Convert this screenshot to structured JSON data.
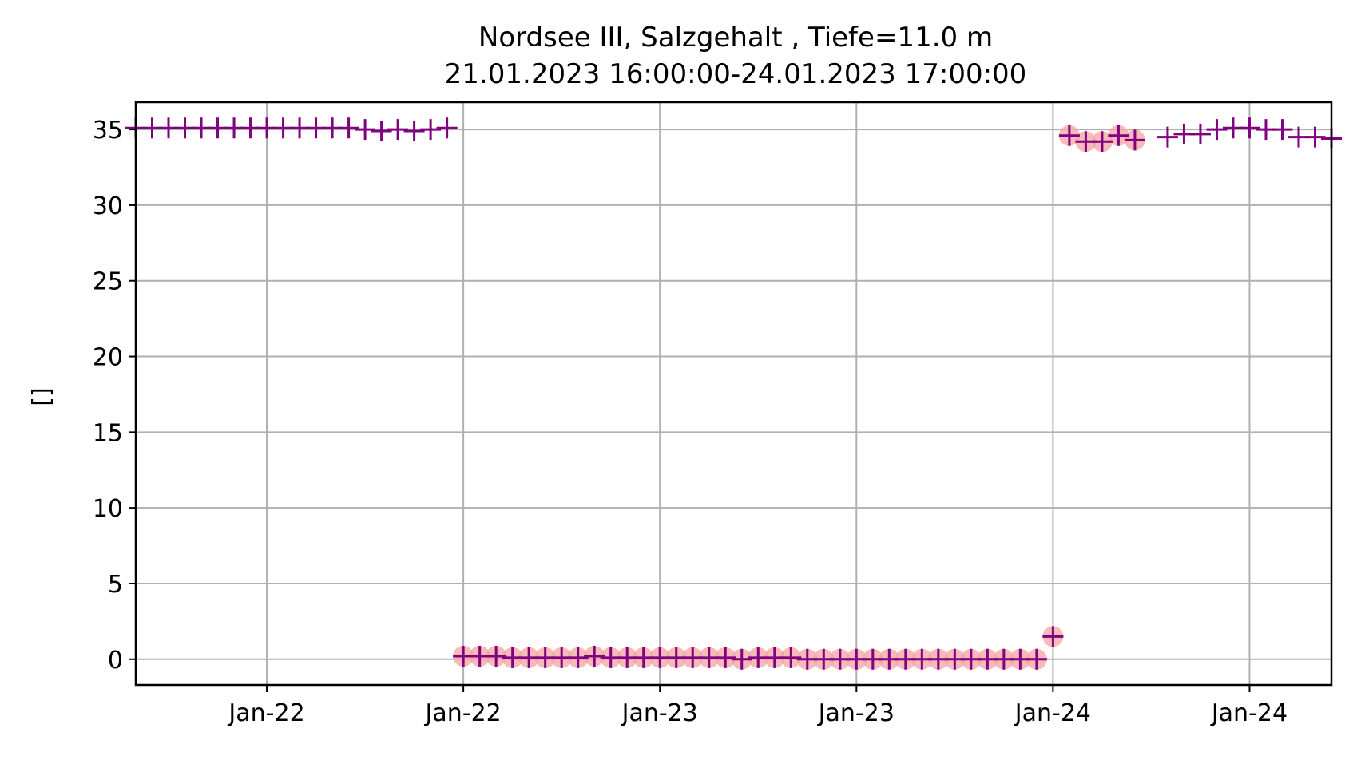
{
  "chart_data": {
    "type": "scatter",
    "title": "Nordsee III, Salzgehalt , Tiefe=11.0 m",
    "subtitle": "21.01.2023 16:00:00-24.01.2023 17:00:00",
    "xlabel": "",
    "ylabel": "[]",
    "x_unit": "hours since 21.01.2023 16:00",
    "xlim": [
      0,
      73
    ],
    "ylim": [
      -1.7,
      36.8
    ],
    "x_ticks": [
      {
        "x": 8,
        "label": "Jan-22"
      },
      {
        "x": 20,
        "label": "Jan-22"
      },
      {
        "x": 32,
        "label": "Jan-23"
      },
      {
        "x": 44,
        "label": "Jan-23"
      },
      {
        "x": 56,
        "label": "Jan-24"
      },
      {
        "x": 68,
        "label": "Jan-24"
      }
    ],
    "y_ticks": [
      0,
      5,
      10,
      15,
      20,
      25,
      30,
      35
    ],
    "grid": true,
    "colors": {
      "marker": "#800080",
      "flag": "#f4a3a3"
    },
    "series": [
      {
        "marker": "plus",
        "x": [
          0,
          1,
          2,
          3,
          4,
          5,
          6,
          7,
          8,
          9,
          10,
          11,
          12,
          13,
          14,
          15,
          16,
          17,
          18,
          19,
          20,
          21,
          22,
          23,
          24,
          25,
          26,
          27,
          28,
          29,
          30,
          31,
          32,
          33,
          34,
          35,
          36,
          37,
          38,
          39,
          40,
          41,
          42,
          43,
          44,
          45,
          46,
          47,
          48,
          49,
          50,
          51,
          52,
          53,
          54,
          55,
          56,
          57,
          58,
          59,
          60,
          61,
          63,
          64,
          65,
          66,
          67,
          68,
          69,
          70,
          71,
          72,
          73
        ],
        "y": [
          35.1,
          35.1,
          35.1,
          35.1,
          35.1,
          35.1,
          35.1,
          35.1,
          35.1,
          35.1,
          35.1,
          35.1,
          35.1,
          35.1,
          35.0,
          34.9,
          35.0,
          34.9,
          35.0,
          35.1,
          0.2,
          0.2,
          0.2,
          0.1,
          0.1,
          0.1,
          0.1,
          0.1,
          0.2,
          0.1,
          0.1,
          0.1,
          0.1,
          0.1,
          0.1,
          0.1,
          0.1,
          0.0,
          0.1,
          0.1,
          0.1,
          0.0,
          0.0,
          0.0,
          0.0,
          0.0,
          0.0,
          0.0,
          0.0,
          0.0,
          0.0,
          0.0,
          0.0,
          0.0,
          0.0,
          0.0,
          1.5,
          34.6,
          34.2,
          34.2,
          34.6,
          34.3,
          34.5,
          34.7,
          34.7,
          35.0,
          35.1,
          35.1,
          35.0,
          35.0,
          34.5,
          34.5,
          34.4
        ]
      },
      {
        "marker": "circle",
        "x": [
          20,
          21,
          22,
          23,
          24,
          25,
          26,
          27,
          28,
          29,
          30,
          31,
          32,
          33,
          34,
          35,
          36,
          37,
          38,
          39,
          40,
          41,
          42,
          43,
          44,
          45,
          46,
          47,
          48,
          49,
          50,
          51,
          52,
          53,
          54,
          55,
          56,
          57,
          58,
          59,
          60,
          61
        ],
        "y": [
          0.2,
          0.2,
          0.2,
          0.1,
          0.1,
          0.1,
          0.1,
          0.1,
          0.2,
          0.1,
          0.1,
          0.1,
          0.1,
          0.1,
          0.1,
          0.1,
          0.1,
          0.0,
          0.1,
          0.1,
          0.1,
          0.0,
          0.0,
          0.0,
          0.0,
          0.0,
          0.0,
          0.0,
          0.0,
          0.0,
          0.0,
          0.0,
          0.0,
          0.0,
          0.0,
          0.0,
          1.5,
          34.6,
          34.2,
          34.2,
          34.6,
          34.3
        ]
      }
    ]
  }
}
